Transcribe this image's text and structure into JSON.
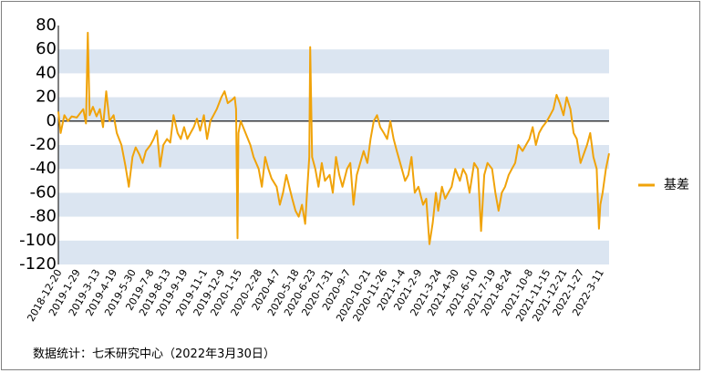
{
  "chart_data": {
    "type": "line",
    "title": "",
    "xlabel": "",
    "ylabel": "",
    "ylim": [
      -120,
      80
    ],
    "yticks": [
      80,
      60,
      40,
      20,
      0,
      -20,
      -40,
      -60,
      -80,
      -100,
      -120
    ],
    "grid": "alternating-horizontal-bands",
    "legend_position": "right",
    "series": [
      {
        "name": "基差",
        "color": "#f0a30a",
        "points": [
          [
            "2018-12-20",
            8
          ],
          [
            "2018-12-25",
            -10
          ],
          [
            "2019-01-02",
            5
          ],
          [
            "2019-01-10",
            0
          ],
          [
            "2019-01-18",
            4
          ],
          [
            "2019-01-29",
            3
          ],
          [
            "2019-02-12",
            10
          ],
          [
            "2019-02-18",
            -2
          ],
          [
            "2019-02-22",
            74
          ],
          [
            "2019-02-26",
            5
          ],
          [
            "2019-03-05",
            12
          ],
          [
            "2019-03-13",
            4
          ],
          [
            "2019-03-20",
            10
          ],
          [
            "2019-03-27",
            -5
          ],
          [
            "2019-04-03",
            25
          ],
          [
            "2019-04-10",
            0
          ],
          [
            "2019-04-19",
            5
          ],
          [
            "2019-04-26",
            -10
          ],
          [
            "2019-05-06",
            -20
          ],
          [
            "2019-05-15",
            -38
          ],
          [
            "2019-05-22",
            -55
          ],
          [
            "2019-05-30",
            -30
          ],
          [
            "2019-06-06",
            -22
          ],
          [
            "2019-06-14",
            -28
          ],
          [
            "2019-06-21",
            -35
          ],
          [
            "2019-06-28",
            -25
          ],
          [
            "2019-07-08",
            -20
          ],
          [
            "2019-07-15",
            -15
          ],
          [
            "2019-07-22",
            -8
          ],
          [
            "2019-07-29",
            -38
          ],
          [
            "2019-08-05",
            -20
          ],
          [
            "2019-08-13",
            -15
          ],
          [
            "2019-08-20",
            -18
          ],
          [
            "2019-08-27",
            5
          ],
          [
            "2019-09-05",
            -10
          ],
          [
            "2019-09-12",
            -15
          ],
          [
            "2019-09-19",
            -5
          ],
          [
            "2019-09-26",
            -15
          ],
          [
            "2019-10-10",
            -5
          ],
          [
            "2019-10-17",
            2
          ],
          [
            "2019-10-24",
            -8
          ],
          [
            "2019-11-01",
            5
          ],
          [
            "2019-11-08",
            -15
          ],
          [
            "2019-11-15",
            0
          ],
          [
            "2019-11-22",
            5
          ],
          [
            "2019-11-29",
            10
          ],
          [
            "2019-12-09",
            20
          ],
          [
            "2019-12-16",
            25
          ],
          [
            "2019-12-23",
            15
          ],
          [
            "2020-01-02",
            18
          ],
          [
            "2020-01-07",
            20
          ],
          [
            "2020-01-10",
            10
          ],
          [
            "2020-01-13",
            -98
          ],
          [
            "2020-01-15",
            -10
          ],
          [
            "2020-01-20",
            0
          ],
          [
            "2020-02-10",
            -20
          ],
          [
            "2020-02-17",
            -30
          ],
          [
            "2020-02-28",
            -40
          ],
          [
            "2020-03-06",
            -55
          ],
          [
            "2020-03-13",
            -30
          ],
          [
            "2020-03-20",
            -40
          ],
          [
            "2020-03-27",
            -48
          ],
          [
            "2020-04-07",
            -55
          ],
          [
            "2020-04-14",
            -70
          ],
          [
            "2020-04-21",
            -60
          ],
          [
            "2020-04-28",
            -45
          ],
          [
            "2020-05-11",
            -65
          ],
          [
            "2020-05-18",
            -75
          ],
          [
            "2020-05-25",
            -80
          ],
          [
            "2020-06-01",
            -70
          ],
          [
            "2020-06-08",
            -86
          ],
          [
            "2020-06-12",
            -60
          ],
          [
            "2020-06-17",
            -30
          ],
          [
            "2020-06-19",
            62
          ],
          [
            "2020-06-23",
            -30
          ],
          [
            "2020-06-30",
            -40
          ],
          [
            "2020-07-07",
            -55
          ],
          [
            "2020-07-14",
            -35
          ],
          [
            "2020-07-21",
            -50
          ],
          [
            "2020-07-31",
            -45
          ],
          [
            "2020-08-07",
            -60
          ],
          [
            "2020-08-14",
            -30
          ],
          [
            "2020-08-21",
            -45
          ],
          [
            "2020-08-28",
            -55
          ],
          [
            "2020-09-07",
            -40
          ],
          [
            "2020-09-14",
            -35
          ],
          [
            "2020-09-21",
            -70
          ],
          [
            "2020-09-28",
            -45
          ],
          [
            "2020-10-13",
            -25
          ],
          [
            "2020-10-21",
            -35
          ],
          [
            "2020-10-28",
            -15
          ],
          [
            "2020-11-04",
            0
          ],
          [
            "2020-11-11",
            5
          ],
          [
            "2020-11-18",
            -5
          ],
          [
            "2020-11-26",
            -10
          ],
          [
            "2020-12-03",
            -15
          ],
          [
            "2020-12-10",
            0
          ],
          [
            "2020-12-17",
            -15
          ],
          [
            "2020-12-24",
            -25
          ],
          [
            "2021-01-04",
            -40
          ],
          [
            "2021-01-11",
            -50
          ],
          [
            "2021-01-18",
            -45
          ],
          [
            "2021-01-25",
            -30
          ],
          [
            "2021-02-01",
            -60
          ],
          [
            "2021-02-09",
            -55
          ],
          [
            "2021-02-19",
            -70
          ],
          [
            "2021-02-26",
            -65
          ],
          [
            "2021-03-05",
            -103
          ],
          [
            "2021-03-12",
            -85
          ],
          [
            "2021-03-19",
            -60
          ],
          [
            "2021-03-24",
            -75
          ],
          [
            "2021-04-01",
            -55
          ],
          [
            "2021-04-08",
            -65
          ],
          [
            "2021-04-15",
            -60
          ],
          [
            "2021-04-22",
            -55
          ],
          [
            "2021-04-30",
            -40
          ],
          [
            "2021-05-10",
            -50
          ],
          [
            "2021-05-17",
            -40
          ],
          [
            "2021-05-24",
            -45
          ],
          [
            "2021-05-31",
            -60
          ],
          [
            "2021-06-04",
            -50
          ],
          [
            "2021-06-10",
            -35
          ],
          [
            "2021-06-18",
            -40
          ],
          [
            "2021-06-25",
            -92
          ],
          [
            "2021-07-02",
            -45
          ],
          [
            "2021-07-09",
            -35
          ],
          [
            "2021-07-19",
            -40
          ],
          [
            "2021-07-26",
            -60
          ],
          [
            "2021-08-02",
            -75
          ],
          [
            "2021-08-09",
            -60
          ],
          [
            "2021-08-16",
            -55
          ],
          [
            "2021-08-24",
            -45
          ],
          [
            "2021-08-31",
            -40
          ],
          [
            "2021-09-07",
            -35
          ],
          [
            "2021-09-14",
            -20
          ],
          [
            "2021-09-23",
            -25
          ],
          [
            "2021-10-08",
            -15
          ],
          [
            "2021-10-15",
            -5
          ],
          [
            "2021-10-22",
            -20
          ],
          [
            "2021-10-29",
            -10
          ],
          [
            "2021-11-05",
            -5
          ],
          [
            "2021-11-15",
            0
          ],
          [
            "2021-11-22",
            5
          ],
          [
            "2021-11-29",
            10
          ],
          [
            "2021-12-06",
            22
          ],
          [
            "2021-12-13",
            15
          ],
          [
            "2021-12-21",
            5
          ],
          [
            "2021-12-28",
            20
          ],
          [
            "2022-01-05",
            10
          ],
          [
            "2022-01-12",
            -10
          ],
          [
            "2022-01-19",
            -15
          ],
          [
            "2022-01-27",
            -35
          ],
          [
            "2022-02-10",
            -20
          ],
          [
            "2022-02-17",
            -10
          ],
          [
            "2022-02-24",
            -30
          ],
          [
            "2022-03-03",
            -40
          ],
          [
            "2022-03-08",
            -90
          ],
          [
            "2022-03-11",
            -70
          ],
          [
            "2022-03-16",
            -60
          ],
          [
            "2022-03-23",
            -40
          ],
          [
            "2022-03-30",
            -27
          ]
        ]
      }
    ],
    "x_tick_labels": [
      "2018-12-20",
      "2019-1-29",
      "2019-3-13",
      "2019-4-19",
      "2019-5-30",
      "2019-7-8",
      "2019-8-13",
      "2019-9-19",
      "2019-11-1",
      "2019-12-9",
      "2020-1-15",
      "2020-2-28",
      "2020-4-7",
      "2020-5-18",
      "2020-6-23",
      "2020-7-31",
      "2020-9-7",
      "2020-10-21",
      "2020-11-26",
      "2021-1-4",
      "2021-2-9",
      "2021-3-24",
      "2021-4-30",
      "2021-6-10",
      "2021-7-19",
      "2021-8-24",
      "2021-10-8",
      "2021-11-15",
      "2021-12-21",
      "2022-1-27",
      "2022-3-11"
    ]
  },
  "source_note": "数据统计：七禾研究中心（2022年3月30日）"
}
